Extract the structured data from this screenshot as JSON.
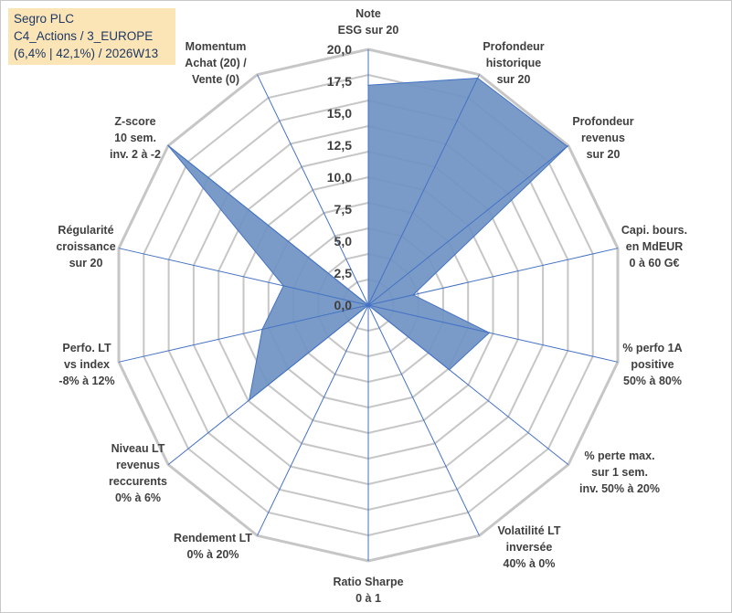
{
  "title_box": {
    "line1": "Segro PLC",
    "line2": "C4_Actions / 3_EUROPE",
    "line3": "(6,4% | 42,1%) / 2026W13"
  },
  "chart_data": {
    "type": "radar",
    "title": "Segro PLC",
    "range": [
      0,
      20
    ],
    "ticks": [
      "0,0",
      "2,5",
      "5,0",
      "7,5",
      "10,0",
      "12,5",
      "15,0",
      "17,5",
      "20,0"
    ],
    "tick_values": [
      0,
      2.5,
      5,
      7.5,
      10,
      12.5,
      15,
      17.5,
      20
    ],
    "axes": [
      {
        "label": [
          "Note",
          "ESG sur 20"
        ],
        "value": 17.2
      },
      {
        "label": [
          "Profondeur",
          "historique",
          "sur 20"
        ],
        "value": 19.7
      },
      {
        "label": [
          "Profondeur",
          "revenus",
          "sur 20"
        ],
        "value": 19.9
      },
      {
        "label": [
          "Capi. bours.",
          "en MdEUR",
          "0 à 60 G€"
        ],
        "value": 3.6
      },
      {
        "label": [
          "% perfo 1A",
          "positive",
          "50% à 80%"
        ],
        "value": 9.7
      },
      {
        "label": [
          "% perte max.",
          "sur 1 sem.",
          "inv. 50% à 20%"
        ],
        "value": 8.1
      },
      {
        "label": [
          "Volatilité LT",
          "inversée",
          "40% à 0%"
        ],
        "value": 0.0
      },
      {
        "label": [
          "Ratio Sharpe",
          "0 à 1"
        ],
        "value": 0.0
      },
      {
        "label": [
          "Rendement LT",
          "0% à 20%"
        ],
        "value": 0.0
      },
      {
        "label": [
          "Niveau LT",
          "revenus",
          "reccurents",
          "0% à 6%"
        ],
        "value": 11.9
      },
      {
        "label": [
          "Perfo. LT",
          "vs index",
          "-8% à 12%"
        ],
        "value": 8.5
      },
      {
        "label": [
          "Régularité",
          "croissance",
          "sur 20"
        ],
        "value": 6.8
      },
      {
        "label": [
          "Z-score",
          "10 sem.",
          "inv. 2 à -2"
        ],
        "value": 20.0
      },
      {
        "label": [
          "Momentum",
          "Achat (20) /",
          "Vente (0)"
        ],
        "value": 0.0
      }
    ],
    "colors": {
      "fill": "#6f93c3",
      "stroke": "#4472c4",
      "grid": "#c6c6c6",
      "spoke": "#4472c4"
    }
  }
}
